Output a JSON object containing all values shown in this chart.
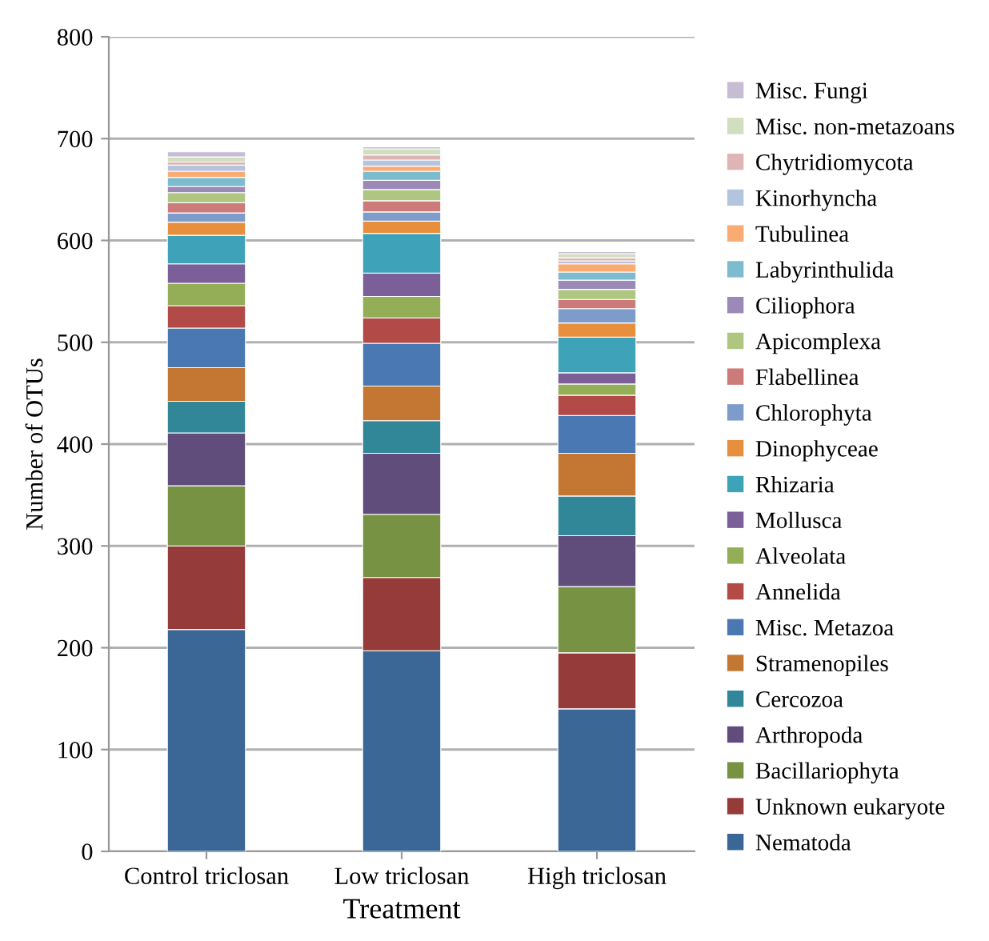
{
  "chart_data": {
    "type": "bar",
    "stacked": true,
    "xlabel": "Treatment",
    "ylabel": "Number of OTUs",
    "categories": [
      "Control triclosan",
      "Low triclosan",
      "High triclosan"
    ],
    "ylim": [
      0,
      800
    ],
    "yticks": [
      0,
      100,
      200,
      300,
      400,
      500,
      600,
      700,
      800
    ],
    "grid": "y",
    "legend": "right",
    "series": [
      {
        "name": "Nematoda",
        "color": "#3a6796",
        "values": [
          218,
          197,
          140
        ]
      },
      {
        "name": "Unknown eukaryote",
        "color": "#953b39",
        "values": [
          82,
          72,
          55
        ]
      },
      {
        "name": "Bacillariophyta",
        "color": "#779243",
        "values": [
          59,
          62,
          65
        ]
      },
      {
        "name": "Arthropoda",
        "color": "#604d7c",
        "values": [
          52,
          60,
          50
        ]
      },
      {
        "name": "Cercozoa",
        "color": "#318798",
        "values": [
          31,
          32,
          39
        ]
      },
      {
        "name": "Stramenopiles",
        "color": "#c47733",
        "values": [
          33,
          34,
          42
        ]
      },
      {
        "name": "Misc. Metazoa",
        "color": "#4a78b2",
        "values": [
          39,
          42,
          37
        ]
      },
      {
        "name": "Annelida",
        "color": "#b24a48",
        "values": [
          22,
          25,
          20
        ]
      },
      {
        "name": "Alveolata",
        "color": "#93ae57",
        "values": [
          22,
          21,
          11
        ]
      },
      {
        "name": "Mollusca",
        "color": "#7a5f98",
        "values": [
          19,
          23,
          11
        ]
      },
      {
        "name": "Rhizaria",
        "color": "#3ea2b9",
        "values": [
          28,
          39,
          35
        ]
      },
      {
        "name": "Dinophyceae",
        "color": "#e88f3e",
        "values": [
          13,
          12,
          14
        ]
      },
      {
        "name": "Chlorophyta",
        "color": "#7d9ccb",
        "values": [
          9,
          9,
          14
        ]
      },
      {
        "name": "Flabellinea",
        "color": "#cd7b7a",
        "values": [
          10,
          11,
          9
        ]
      },
      {
        "name": "Apicomplexa",
        "color": "#aec680",
        "values": [
          10,
          11,
          10
        ]
      },
      {
        "name": "Ciliophora",
        "color": "#9c8ab6",
        "values": [
          6,
          9,
          9
        ]
      },
      {
        "name": "Labyrinthulida",
        "color": "#7dbccf",
        "values": [
          9,
          9,
          8
        ]
      },
      {
        "name": "Tubulinea",
        "color": "#f9ab72",
        "values": [
          6,
          5,
          8
        ]
      },
      {
        "name": "Kinorhyncha",
        "color": "#b4c3de",
        "values": [
          6,
          6,
          3
        ]
      },
      {
        "name": "Chytridiomycota",
        "color": "#deb5b4",
        "values": [
          3,
          5,
          3
        ]
      },
      {
        "name": "Misc. non-metazoans",
        "color": "#d1dec0",
        "values": [
          5,
          6,
          4
        ]
      },
      {
        "name": "Misc. Fungi",
        "color": "#c6bcd4",
        "values": [
          5,
          2,
          2
        ]
      }
    ]
  }
}
